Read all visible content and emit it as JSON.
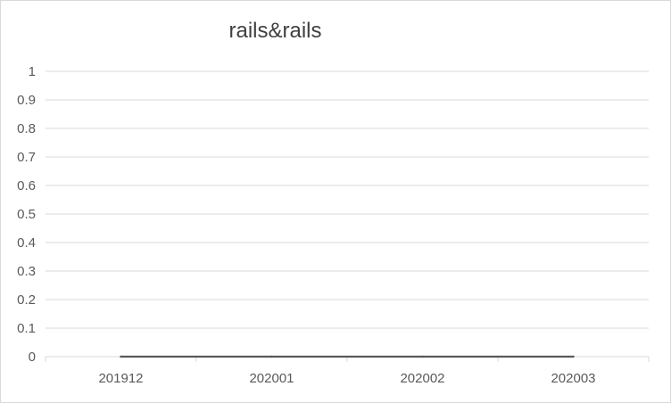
{
  "chart_data": {
    "type": "line",
    "title": "rails&rails",
    "categories": [
      "201912",
      "202001",
      "202002",
      "202003"
    ],
    "series": [
      {
        "values": [
          0,
          0,
          0,
          0
        ],
        "color": "#595959"
      }
    ],
    "ylim": [
      0,
      1
    ],
    "yticks": [
      0,
      0.1,
      0.2,
      0.3,
      0.4,
      0.5,
      0.6,
      0.7,
      0.8,
      0.9,
      1
    ],
    "grid": true,
    "legend": "none",
    "gridColor": "#d9d9d9",
    "axisColor": "#d9d9d9"
  }
}
